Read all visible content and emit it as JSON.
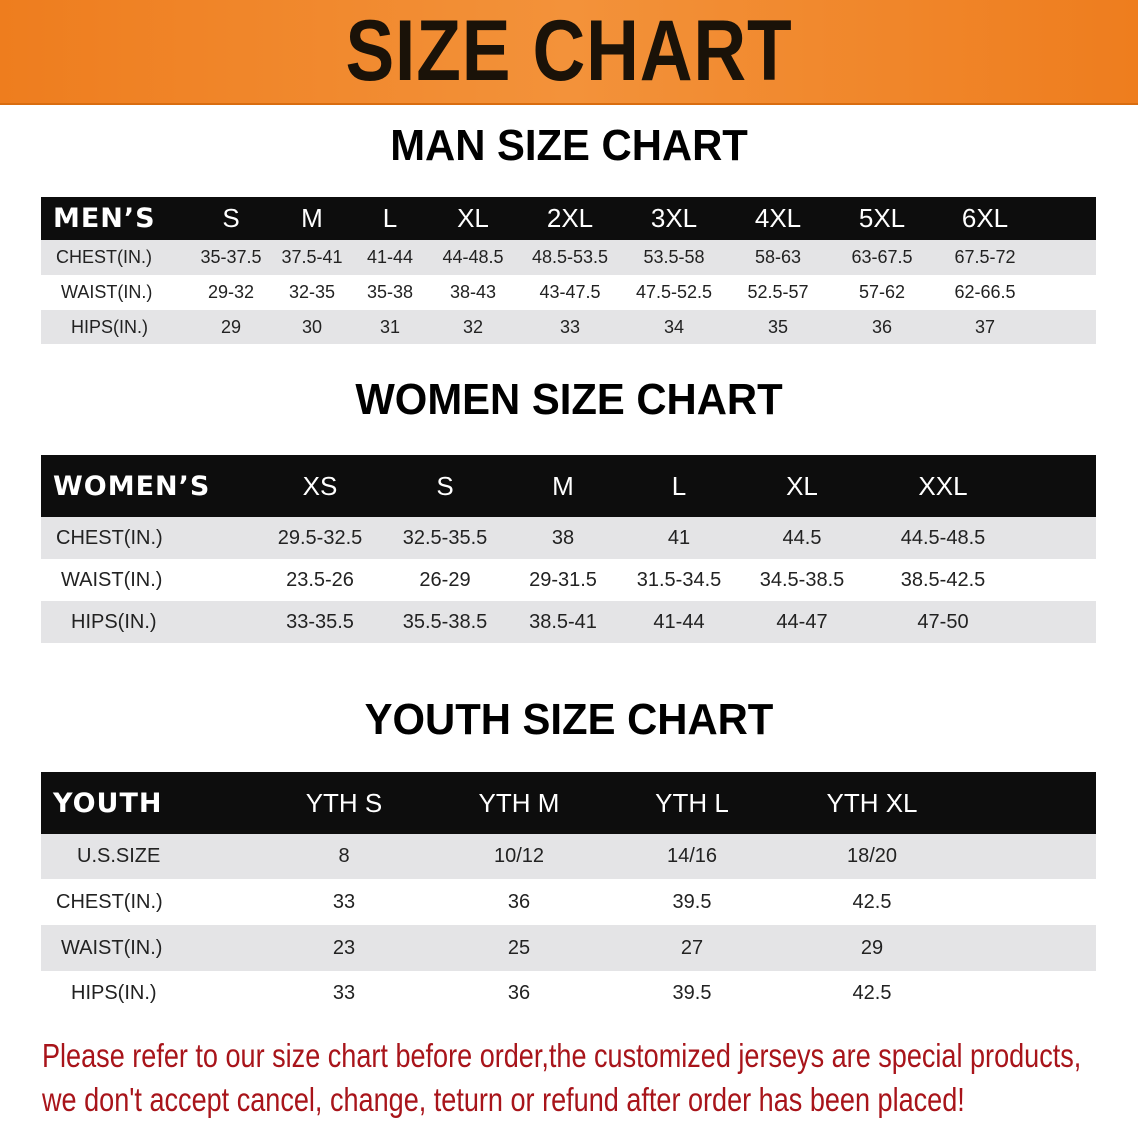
{
  "banner": {
    "title": "SIZE CHART",
    "color": "#ee7d1e"
  },
  "men": {
    "title": "MAN SIZE CHART",
    "header": [
      "MEN’S",
      "S",
      "M",
      "L",
      "XL",
      "2XL",
      "3XL",
      "4XL",
      "5XL",
      "6XL"
    ],
    "rows": [
      [
        "CHEST(IN.)",
        "35-37.5",
        "37.5-41",
        "41-44",
        "44-48.5",
        "48.5-53.5",
        "53.5-58",
        "58-63",
        "63-67.5",
        "67.5-72"
      ],
      [
        "WAIST(IN.)",
        "29-32",
        "32-35",
        "35-38",
        "38-43",
        "43-47.5",
        "47.5-52.5",
        "52.5-57",
        "57-62",
        "62-66.5"
      ],
      [
        "HIPS(IN.)",
        "29",
        "30",
        "31",
        "32",
        "33",
        "34",
        "35",
        "36",
        "37"
      ]
    ]
  },
  "women": {
    "title": "WOMEN SIZE CHART",
    "header": [
      "WOMEN’S",
      "XS",
      "S",
      "M",
      "L",
      "XL",
      "XXL"
    ],
    "rows": [
      [
        "CHEST(IN.)",
        "29.5-32.5",
        "32.5-35.5",
        "38",
        "41",
        "44.5",
        "44.5-48.5"
      ],
      [
        "WAIST(IN.)",
        "23.5-26",
        "26-29",
        "29-31.5",
        "31.5-34.5",
        "34.5-38.5",
        "38.5-42.5"
      ],
      [
        "HIPS(IN.)",
        "33-35.5",
        "35.5-38.5",
        "38.5-41",
        "41-44",
        "44-47",
        "47-50"
      ]
    ]
  },
  "youth": {
    "title": "YOUTH SIZE CHART",
    "header": [
      "YOUTH",
      "YTH S",
      "YTH M",
      "YTH L",
      "YTH XL"
    ],
    "rows": [
      [
        "U.S.SIZE",
        "8",
        "10/12",
        "14/16",
        "18/20"
      ],
      [
        "CHEST(IN.)",
        "33",
        "36",
        "39.5",
        "42.5"
      ],
      [
        "WAIST(IN.)",
        "23",
        "25",
        "27",
        "29"
      ],
      [
        "HIPS(IN.)",
        "33",
        "36",
        "39.5",
        "42.5"
      ]
    ]
  },
  "note": {
    "line1": "Please refer to our size chart before order,the customized jerseys are special products,",
    "line2": "we don't accept cancel, change, teturn or refund after order has been placed!",
    "color": "#a8141a"
  }
}
